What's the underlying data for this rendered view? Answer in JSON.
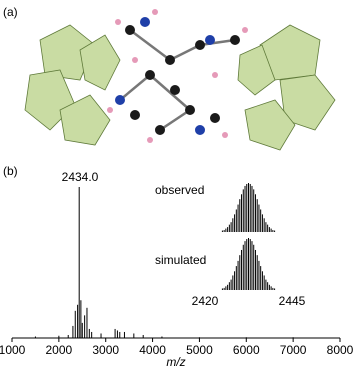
{
  "panels": [
    "(a)",
    "(b)"
  ],
  "chart_data": [
    {
      "type": "stem",
      "annotation": "2434.0",
      "x_label": "m/z",
      "x": [
        1500,
        2000,
        2200,
        2300,
        2350,
        2400,
        2434,
        2470,
        2500,
        2550,
        2600,
        2650,
        2700,
        2900,
        3200,
        3250,
        3300,
        3400,
        3600,
        3800,
        4200,
        5000,
        6000,
        7000,
        7500
      ],
      "values": [
        1,
        1.5,
        2,
        8,
        18,
        22,
        100,
        25,
        10,
        15,
        20,
        6,
        4,
        3,
        6,
        5,
        4,
        4,
        3,
        2,
        1,
        0.5,
        0.5,
        0.5,
        0.3
      ],
      "color": "#000000",
      "xlim": [
        1000,
        8000
      ],
      "xticks": [
        1000,
        2000,
        3000,
        4000,
        5000,
        6000,
        7000,
        8000
      ],
      "ylim": [
        0,
        100
      ]
    },
    {
      "type": "stem",
      "x": [
        2425,
        2425.5,
        2426,
        2426.5,
        2427,
        2427.5,
        2428,
        2428.5,
        2429,
        2429.5,
        2430,
        2430.5,
        2431,
        2431.5,
        2432,
        2432.5,
        2433,
        2433.5,
        2434,
        2434.5,
        2435,
        2435.5,
        2436,
        2436.5,
        2437,
        2437.5,
        2438,
        2438.5,
        2439,
        2439.5,
        2440
      ],
      "series": [
        {
          "name": "observed",
          "color": "#000000",
          "values": [
            3,
            4,
            7,
            10,
            15,
            20,
            28,
            36,
            46,
            56,
            67,
            77,
            87,
            94,
            98,
            100,
            98,
            94,
            87,
            77,
            67,
            56,
            46,
            36,
            28,
            20,
            15,
            10,
            7,
            4,
            3
          ]
        },
        {
          "name": "simulated",
          "color": "#000000",
          "values": [
            3,
            4,
            7,
            10,
            15,
            20,
            28,
            36,
            46,
            56,
            67,
            77,
            87,
            94,
            98,
            100,
            98,
            94,
            87,
            77,
            67,
            56,
            46,
            36,
            28,
            20,
            15,
            10,
            7,
            4,
            3
          ]
        }
      ],
      "xlim": [
        2420,
        2445
      ],
      "xticks": [
        2420,
        2445
      ],
      "ylim": [
        0,
        100
      ]
    }
  ]
}
